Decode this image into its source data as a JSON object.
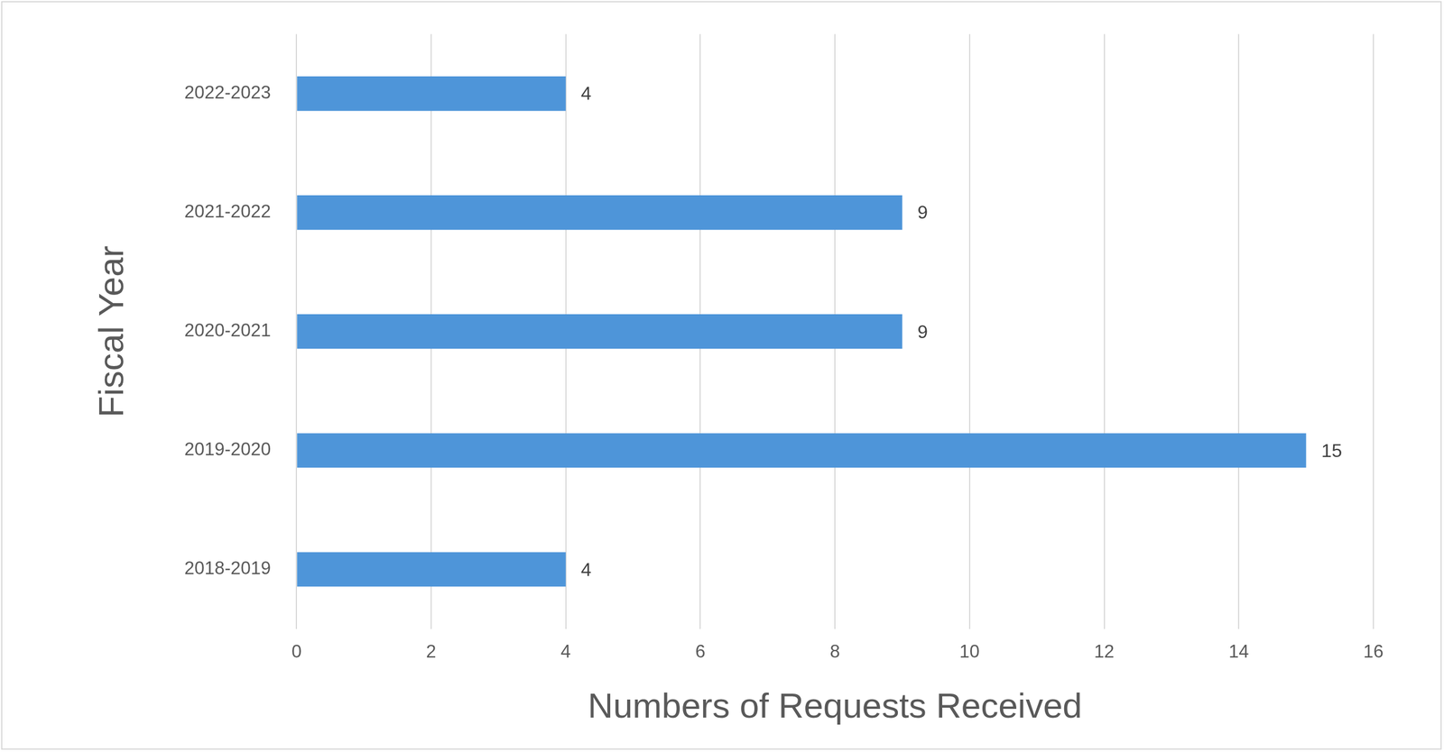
{
  "chart_data": {
    "type": "bar",
    "orientation": "horizontal",
    "x_label": "Numbers of Requests Received",
    "y_label": "Fiscal Year",
    "categories": [
      "2022-2023",
      "2021-2022",
      "2020-2021",
      "2019-2020",
      "2018-2019"
    ],
    "values": [
      4,
      9,
      9,
      15,
      4
    ],
    "color": "#4e95d9",
    "xlim": [
      0,
      16
    ],
    "xticks": [
      0,
      2,
      4,
      6,
      8,
      10,
      12,
      14,
      16
    ],
    "grid": true,
    "data_labels": true
  }
}
